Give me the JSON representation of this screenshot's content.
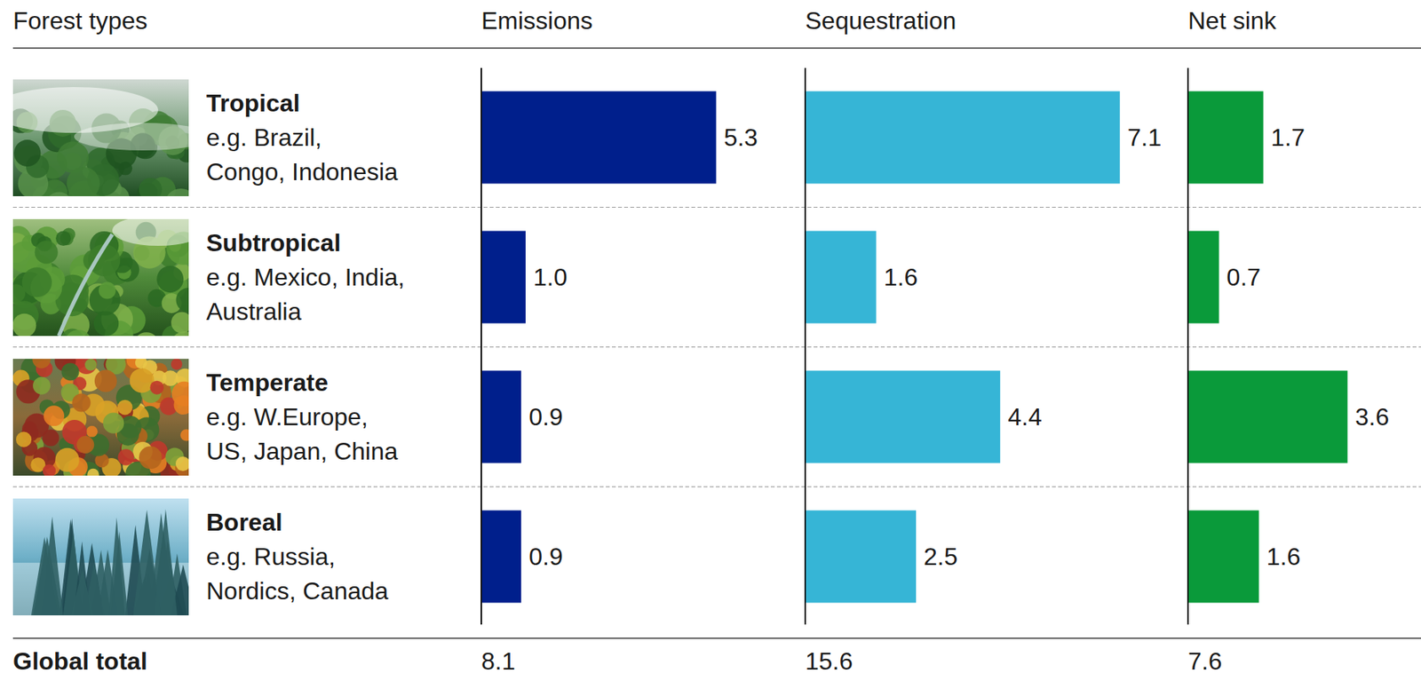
{
  "chart_data": {
    "type": "bar",
    "orientation": "horizontal",
    "data_labels": true,
    "category_header": "Forest types",
    "total_label": "Global total",
    "categories": [
      "Tropical",
      "Subtropical",
      "Temperate",
      "Boreal"
    ],
    "examples": [
      [
        "e.g. Brazil,",
        "Congo, Indonesia"
      ],
      [
        "e.g. Mexico, India,",
        "Australia"
      ],
      [
        "e.g. W.Europe,",
        "US, Japan, China"
      ],
      [
        "e.g. Russia,",
        "Nordics, Canada"
      ]
    ],
    "series": [
      {
        "name": "Emissions",
        "color": "#001f8c",
        "values": [
          5.3,
          1.0,
          0.9,
          0.9
        ],
        "value_labels": [
          "5.3",
          "1.0",
          "0.9",
          "0.9"
        ],
        "total": 8.1,
        "xlim": [
          0,
          6
        ]
      },
      {
        "name": "Sequestration",
        "color": "#36b5d6",
        "values": [
          7.1,
          1.6,
          4.4,
          2.5
        ],
        "value_labels": [
          "7.1",
          "1.6",
          "4.4",
          "2.5"
        ],
        "total": 15.6,
        "xlim": [
          0,
          8
        ]
      },
      {
        "name": "Net sink",
        "color": "#0a9a3a",
        "values": [
          1.7,
          0.7,
          3.6,
          1.6
        ],
        "value_labels": [
          "1.7",
          "0.7",
          "3.6",
          "1.6"
        ],
        "total": 7.6,
        "xlim": [
          0,
          4.5
        ]
      }
    ]
  }
}
